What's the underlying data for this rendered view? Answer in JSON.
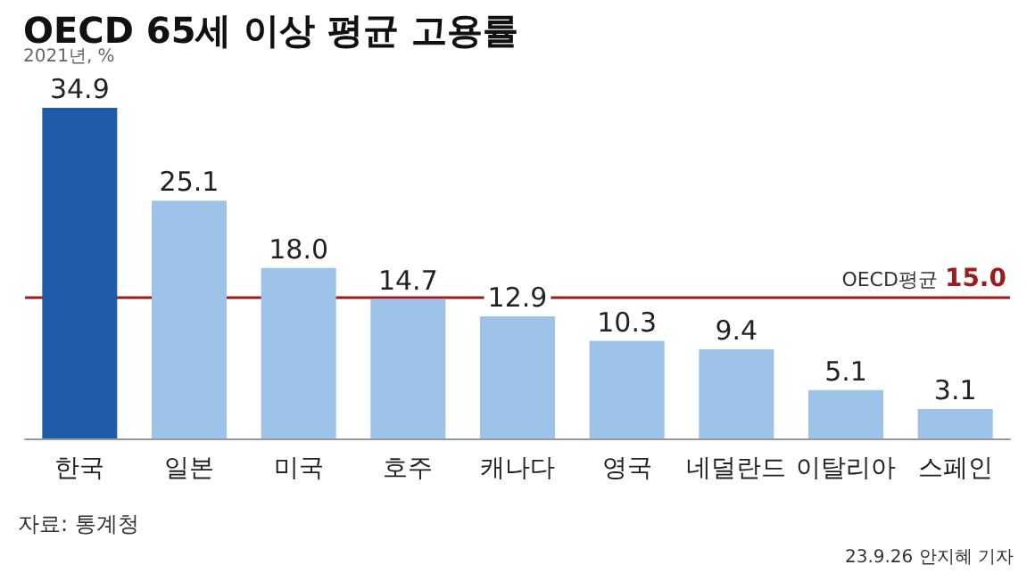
{
  "chart_data": {
    "type": "bar",
    "title": "OECD 65세 이상 평균 고용률",
    "subtitle": "2021년, %",
    "categories": [
      "한국",
      "일본",
      "미국",
      "호주",
      "캐나다",
      "영국",
      "네덜란드",
      "이탈리아",
      "스페인"
    ],
    "values": [
      34.9,
      25.1,
      18.0,
      14.7,
      12.9,
      10.3,
      9.4,
      5.1,
      3.1
    ],
    "colors": [
      "#1f5ba8",
      "#9dc3e8",
      "#9dc3e8",
      "#9dc3e8",
      "#9dc3e8",
      "#9dc3e8",
      "#9dc3e8",
      "#9dc3e8",
      "#9dc3e8"
    ],
    "value_labels": [
      "34.9",
      "25.1",
      "18.0",
      "14.7",
      "12.9",
      "10.3",
      "9.4",
      "5.1",
      "3.1"
    ],
    "ref_lines": [
      {
        "axis": "y",
        "value": 15.0,
        "label": "OECD평균 15.0",
        "color": "#9b1c1c"
      }
    ],
    "annotations": [
      "자료: 통계청",
      "23.9.26 안지혜 기자"
    ]
  }
}
